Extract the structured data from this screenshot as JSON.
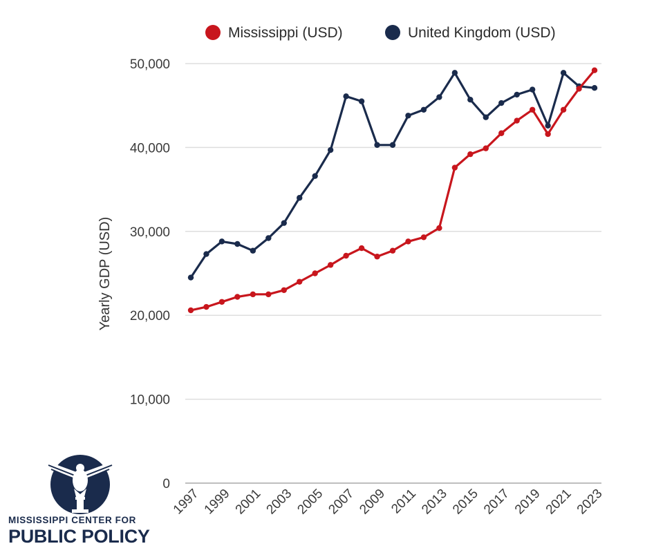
{
  "chart_data": {
    "type": "line",
    "title": "",
    "ylabel": "Yearly GDP (USD)",
    "xlabel": "",
    "ylim": [
      0,
      50000
    ],
    "yticks": [
      0,
      10000,
      20000,
      30000,
      40000,
      50000
    ],
    "ytick_labels": [
      "0",
      "10,000",
      "20,000",
      "30,000",
      "40,000",
      "50,000"
    ],
    "x": [
      1997,
      1998,
      1999,
      2000,
      2001,
      2002,
      2003,
      2004,
      2005,
      2006,
      2007,
      2008,
      2009,
      2010,
      2011,
      2012,
      2013,
      2014,
      2015,
      2016,
      2017,
      2018,
      2019,
      2020,
      2021,
      2022,
      2023
    ],
    "xtick_labels": [
      "1997",
      "1999",
      "2001",
      "2003",
      "2005",
      "2007",
      "2009",
      "2011",
      "2013",
      "2015",
      "2017",
      "2019",
      "2021",
      "2023"
    ],
    "grid": "horizontal",
    "legend_position": "top",
    "series": [
      {
        "name": "Mississippi (USD)",
        "color": "#c8161d",
        "values": [
          20600,
          21000,
          21600,
          22200,
          22500,
          22500,
          23000,
          24000,
          25000,
          26000,
          27100,
          28000,
          27000,
          27700,
          28800,
          29300,
          30400,
          37600,
          39200,
          39900,
          41700,
          43200,
          44500,
          41600,
          44500,
          47000,
          49200
        ]
      },
      {
        "name": "United Kingdom (USD)",
        "color": "#1a2b4c",
        "values": [
          24500,
          27300,
          28800,
          28500,
          27700,
          29200,
          31000,
          34000,
          36600,
          39700,
          46100,
          45500,
          40300,
          40300,
          43800,
          44500,
          46000,
          48900,
          45700,
          43600,
          45300,
          46300,
          46900,
          42600,
          48900,
          47300,
          47100
        ]
      }
    ]
  },
  "logo": {
    "line1": "MISSISSIPPI CENTER FOR",
    "line2": "PUBLIC POLICY"
  }
}
